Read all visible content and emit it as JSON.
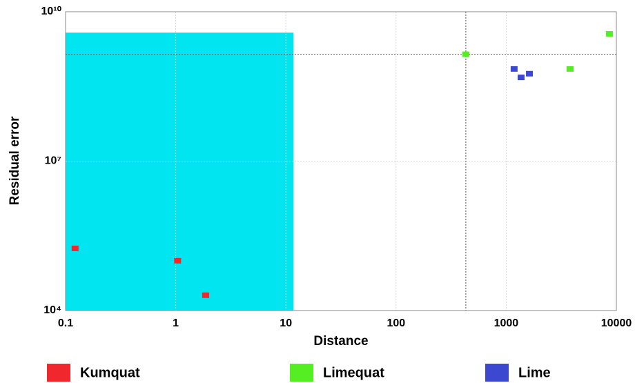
{
  "chart_data": {
    "type": "scatter",
    "x_label": "Distance",
    "y_label": "Residual error",
    "log_x": true,
    "log_y": true,
    "grid": true,
    "xlim": [
      0.1,
      10000
    ],
    "ylim": [
      10000,
      10000000000
    ],
    "xticks": [
      0.1,
      1,
      10,
      100,
      1000,
      10000
    ],
    "yticks": [
      {
        "value": 10000,
        "label": "10⁴"
      },
      {
        "value": 10000000,
        "label": "10⁷"
      },
      {
        "value": 10000000000,
        "label": "10¹⁰"
      }
    ],
    "highlight": {
      "color": "#00e5f0",
      "x": [
        0.1,
        11.7
      ],
      "y": [
        10000,
        3800000000
      ]
    },
    "crosshair": {
      "x": 430,
      "y": 1400000000
    },
    "legend_position": "bottom",
    "series": [
      {
        "name": "Kumquat",
        "color": "#f0282d",
        "x": [
          0.122,
          1.04,
          1.87
        ],
        "values": [
          177000,
          100000,
          20300
        ]
      },
      {
        "name": "Limequat",
        "color": "#55ee22",
        "x": [
          430,
          3800,
          8650
        ],
        "values": [
          1400000000,
          710000000,
          3600000000
        ]
      },
      {
        "name": "Lime",
        "color": "#3d48d0",
        "x": [
          1180,
          1365,
          1625
        ],
        "values": [
          710000000,
          480000000,
          570000000
        ]
      }
    ]
  }
}
